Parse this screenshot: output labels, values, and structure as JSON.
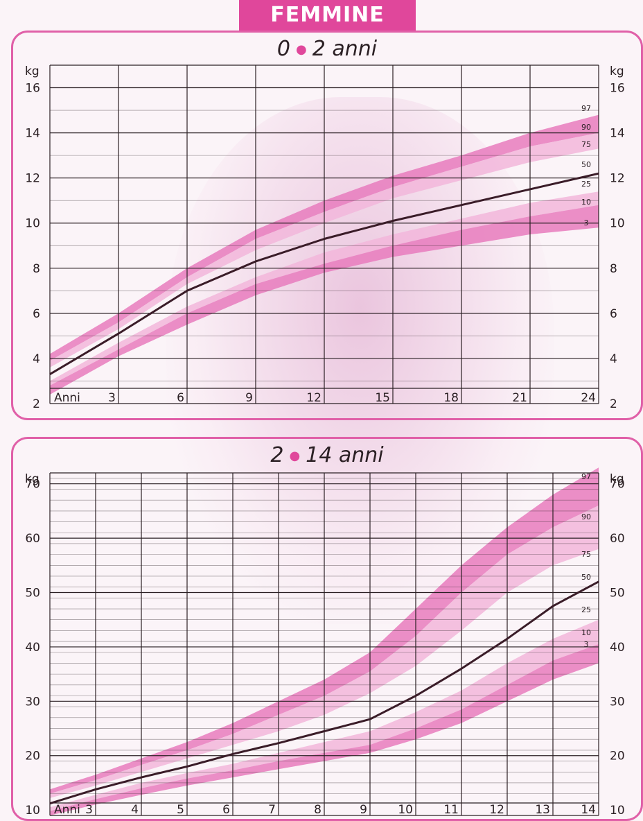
{
  "header": {
    "title": "FEMMINE"
  },
  "colors": {
    "accent": "#e0479b",
    "band_outer": "#e77bbd",
    "band_inner": "#f2b6da",
    "median": "#3a1c28",
    "grid": "#2b2024"
  },
  "chart_data": [
    {
      "type": "line",
      "title_start": "0",
      "title_end": "2 anni",
      "ylabel": "kg",
      "xlabel": "Anni",
      "xlim": [
        0,
        24
      ],
      "ylim": [
        2,
        17
      ],
      "x_ticks": [
        "3",
        "6",
        "9",
        "12",
        "15",
        "18",
        "21",
        "24"
      ],
      "y_ticks": [
        "2",
        "4",
        "6",
        "8",
        "10",
        "12",
        "14",
        "16"
      ],
      "percentile_labels": [
        "97",
        "90",
        "75",
        "50",
        "25",
        "10",
        "3"
      ],
      "x": [
        0,
        3,
        6,
        9,
        12,
        15,
        18,
        21,
        24
      ],
      "series": [
        {
          "name": "97",
          "values": [
            4.2,
            6.0,
            8.0,
            9.7,
            11.0,
            12.1,
            13.0,
            14.0,
            14.8
          ]
        },
        {
          "name": "90",
          "values": [
            3.9,
            5.6,
            7.6,
            9.3,
            10.5,
            11.6,
            12.5,
            13.4,
            14.0
          ]
        },
        {
          "name": "75",
          "values": [
            3.6,
            5.3,
            7.3,
            8.8,
            10.0,
            11.1,
            11.9,
            12.7,
            13.3
          ]
        },
        {
          "name": "50",
          "values": [
            3.3,
            5.1,
            7.0,
            8.3,
            9.3,
            10.1,
            10.8,
            11.5,
            12.2
          ]
        },
        {
          "name": "25",
          "values": [
            3.0,
            4.7,
            6.3,
            7.6,
            8.7,
            9.5,
            10.2,
            10.9,
            11.4
          ]
        },
        {
          "name": "10",
          "values": [
            2.8,
            4.4,
            6.0,
            7.3,
            8.2,
            9.0,
            9.7,
            10.3,
            10.8
          ]
        },
        {
          "name": "3",
          "values": [
            2.4,
            4.1,
            5.5,
            6.8,
            7.8,
            8.5,
            9.0,
            9.5,
            9.8
          ]
        }
      ]
    },
    {
      "type": "line",
      "title_start": "2",
      "title_end": "14 anni",
      "ylabel": "kg",
      "xlabel": "Anni",
      "xlim": [
        2,
        14
      ],
      "ylim": [
        9,
        72
      ],
      "x_ticks": [
        "3",
        "4",
        "5",
        "6",
        "7",
        "8",
        "9",
        "10",
        "11",
        "12",
        "13",
        "14"
      ],
      "y_ticks": [
        "10",
        "20",
        "30",
        "40",
        "50",
        "60",
        "70"
      ],
      "percentile_labels": [
        "97",
        "90",
        "75",
        "50",
        "25",
        "10",
        "3"
      ],
      "x": [
        2,
        3,
        4,
        5,
        6,
        7,
        8,
        9,
        10,
        11,
        12,
        13,
        14
      ],
      "series": [
        {
          "name": "97",
          "values": [
            13.8,
            16.5,
            19.5,
            22.5,
            26.0,
            30.0,
            34.0,
            39.0,
            47.0,
            55.0,
            62.0,
            68.0,
            73.0
          ]
        },
        {
          "name": "90",
          "values": [
            13.0,
            15.5,
            18.3,
            21.0,
            24.0,
            27.5,
            31.0,
            35.5,
            42.0,
            50.0,
            57.0,
            62.0,
            66.0
          ]
        },
        {
          "name": "75",
          "values": [
            12.2,
            14.5,
            17.0,
            19.5,
            22.0,
            24.5,
            27.5,
            31.5,
            36.5,
            43.0,
            50.0,
            55.0,
            58.0
          ]
        },
        {
          "name": "50",
          "values": [
            11.2,
            13.8,
            16.0,
            18.0,
            20.3,
            22.3,
            24.5,
            26.7,
            31.0,
            36.0,
            41.5,
            47.5,
            52.0
          ]
        },
        {
          "name": "25",
          "values": [
            10.5,
            12.8,
            15.0,
            16.8,
            18.5,
            20.5,
            22.5,
            24.5,
            28.0,
            32.0,
            37.0,
            41.5,
            45.0
          ]
        },
        {
          "name": "10",
          "values": [
            9.8,
            12.0,
            14.0,
            15.8,
            17.3,
            19.0,
            20.5,
            22.0,
            25.0,
            28.5,
            33.0,
            37.5,
            40.5
          ]
        },
        {
          "name": "3",
          "values": [
            9.0,
            11.0,
            12.8,
            14.5,
            16.0,
            17.5,
            19.0,
            20.5,
            23.0,
            26.0,
            30.0,
            34.0,
            37.0
          ]
        }
      ]
    }
  ]
}
